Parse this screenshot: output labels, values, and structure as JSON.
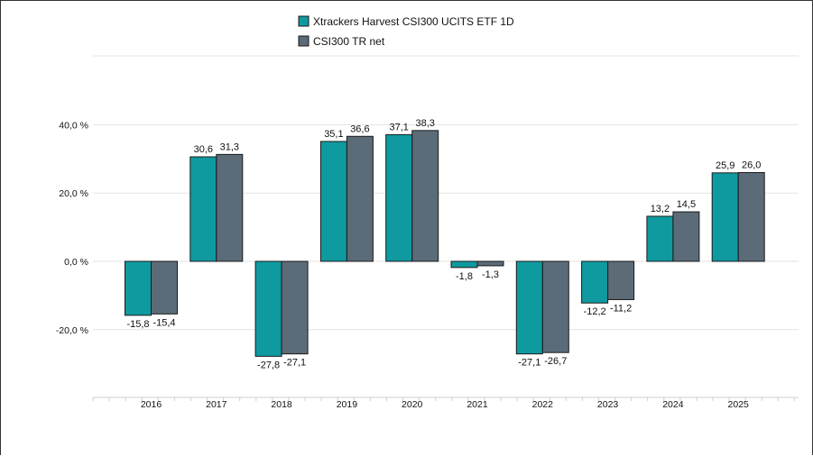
{
  "chart_data": {
    "type": "bar",
    "categories": [
      "2016",
      "2017",
      "2018",
      "2019",
      "2020",
      "2021",
      "2022",
      "2023",
      "2024",
      "2025"
    ],
    "series": [
      {
        "name": "Xtrackers Harvest CSI300 UCITS ETF 1D",
        "color": "#0f9aa0",
        "values": [
          -15.8,
          30.6,
          -27.8,
          35.1,
          37.1,
          -1.8,
          -27.1,
          -12.2,
          13.2,
          25.9
        ],
        "labels": [
          "-15,8",
          "30,6",
          "-27,8",
          "35,1",
          "37,1",
          "-1,8",
          "-27,1",
          "-12,2",
          "13,2",
          "25,9"
        ]
      },
      {
        "name": "CSI300 TR net",
        "color": "#5b6b78",
        "values": [
          -15.4,
          31.3,
          -27.1,
          36.6,
          38.3,
          -1.3,
          -26.7,
          -11.2,
          14.5,
          26.0
        ],
        "labels": [
          "-15,4",
          "31,3",
          "-27,1",
          "36,6",
          "38,3",
          "-1,3",
          "-26,7",
          "-11,2",
          "14,5",
          "26,0"
        ]
      }
    ],
    "y_ticks": [
      {
        "value": 40,
        "label": "40,0 %"
      },
      {
        "value": 20,
        "label": "20,0 %"
      },
      {
        "value": 0,
        "label": "0,0 %"
      },
      {
        "value": -20,
        "label": "-20,0 %"
      }
    ],
    "ylim": [
      -40,
      60
    ],
    "grid": true,
    "legend_position": "top-center",
    "title": "",
    "xlabel": "",
    "ylabel": ""
  }
}
